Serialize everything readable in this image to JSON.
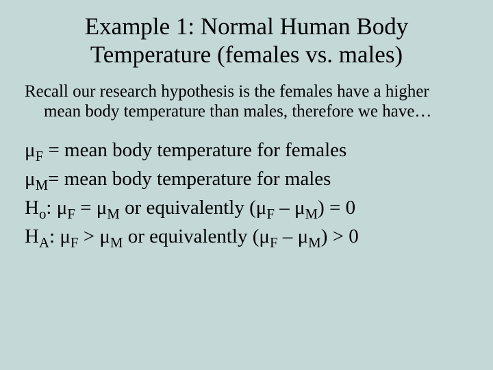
{
  "background_color": "#c4d8d8",
  "text_color": "#000000",
  "font_family": "Times New Roman",
  "title": {
    "line1": "Example 1:  Normal Human Body",
    "line2": "Temperature  (females vs. males)",
    "fontsize": 35,
    "align": "center"
  },
  "paragraph": {
    "text": "Recall our research hypothesis is the females have a higher mean body temperature than males, therefore we have…",
    "fontsize": 25
  },
  "definitions": {
    "fontsize": 29,
    "mu_f_label": "μ",
    "mu_f_sub": "F",
    "mu_f_def": " = mean body temperature for females",
    "mu_m_label": "μ",
    "mu_m_sub": "M",
    "mu_m_def": "= mean body temperature for males",
    "h0_prefix": "H",
    "h0_sub": "o",
    "h0_mid_a": ":  μ",
    "h0_mid_b": " = μ",
    "h0_mid_c": "  or equivalently  (μ",
    "h0_mid_d": " – μ",
    "h0_end": ") = 0",
    "ha_prefix": "H",
    "ha_sub": "A",
    "ha_mid_a": ": μ",
    "ha_mid_b": " > μ",
    "ha_mid_c": "  or equivalently  (μ",
    "ha_mid_d": " – μ",
    "ha_end": ") > 0",
    "sub_F": "F",
    "sub_M": "M"
  }
}
